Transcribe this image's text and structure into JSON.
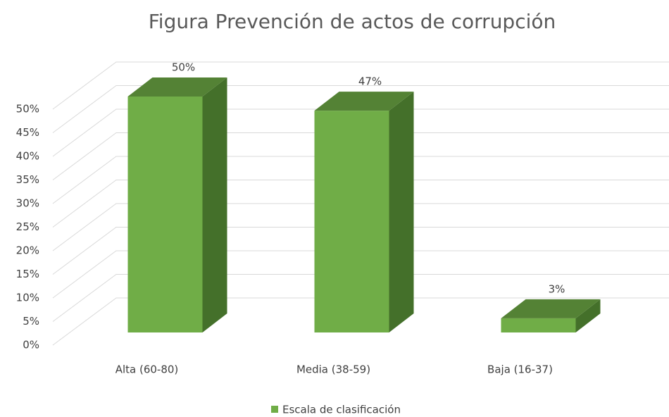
{
  "chart_data": {
    "type": "bar3d",
    "title": "Figura Prevención de actos de corrupción",
    "categories": [
      "Alta (60-80)",
      "Media (38-59)",
      "Baja (16-37)"
    ],
    "series": [
      {
        "name": "Escala de clasificación",
        "color": "#70ad47",
        "values": [
          50,
          47,
          3
        ],
        "value_labels": [
          "50%",
          "47%",
          "3%"
        ]
      }
    ],
    "ylim": [
      0,
      50
    ],
    "yticks": [
      {
        "value": 0,
        "label": "0%"
      },
      {
        "value": 5,
        "label": "5%"
      },
      {
        "value": 10,
        "label": "10%"
      },
      {
        "value": 15,
        "label": "15%"
      },
      {
        "value": 20,
        "label": "20%"
      },
      {
        "value": 25,
        "label": "25%"
      },
      {
        "value": 30,
        "label": "30%"
      },
      {
        "value": 35,
        "label": "35%"
      },
      {
        "value": 40,
        "label": "40%"
      },
      {
        "value": 45,
        "label": "45%"
      },
      {
        "value": 50,
        "label": "50%"
      }
    ],
    "grid": true,
    "legend": "bottom"
  }
}
